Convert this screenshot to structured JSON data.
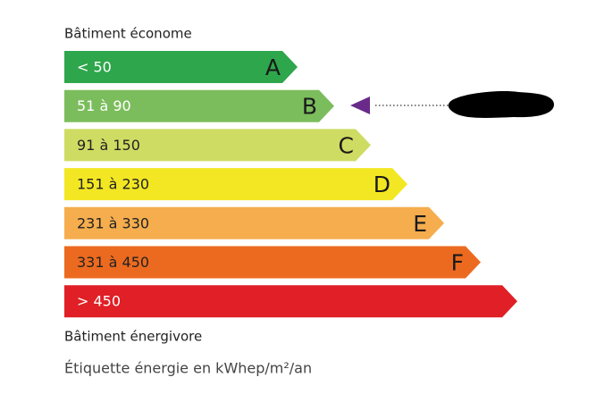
{
  "header": {
    "top_label": "Bâtiment économe",
    "bottom_label": "Bâtiment énergivore"
  },
  "bands": [
    {
      "range": "< 50",
      "letter": "A",
      "color": "#2ea64c",
      "text_color": "#ffffff"
    },
    {
      "range": "51 à 90",
      "letter": "B",
      "color": "#7bbd5c",
      "text_color": "#ffffff"
    },
    {
      "range": "91 à 150",
      "letter": "C",
      "color": "#cfdc63",
      "text_color": "#222222"
    },
    {
      "range": "151 à 230",
      "letter": "D",
      "color": "#f3e723",
      "text_color": "#222222"
    },
    {
      "range": "231 à 330",
      "letter": "E",
      "color": "#f5ad4e",
      "text_color": "#222222"
    },
    {
      "range": "331 à 450",
      "letter": "F",
      "color": "#ec6a1f",
      "text_color": "#222222"
    },
    {
      "range": "> 450",
      "color": "#e01f26",
      "text_color": "#ffffff"
    }
  ],
  "footer": "Étiquette énergie en kWhep/m²/an"
}
